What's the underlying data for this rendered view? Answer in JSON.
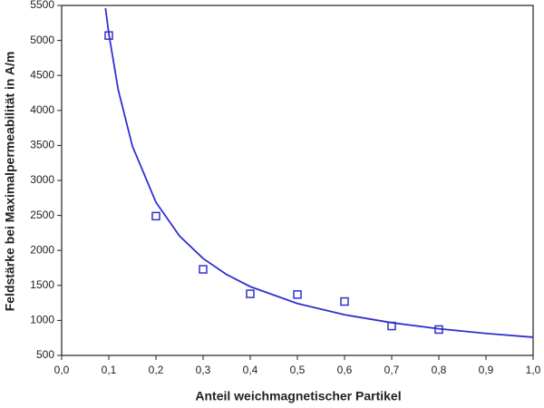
{
  "chart_data": {
    "type": "scatter",
    "x_label": "Anteil weichmagnetischer Partikel",
    "y_label": "Feldstärke bei Maximalpermeabilität in A/m",
    "xlim": [
      0.0,
      1.0
    ],
    "ylim": [
      500,
      5500
    ],
    "xticks": [
      {
        "value": 0.0,
        "label": "0,0"
      },
      {
        "value": 0.1,
        "label": "0,1"
      },
      {
        "value": 0.2,
        "label": "0,2"
      },
      {
        "value": 0.3,
        "label": "0,3"
      },
      {
        "value": 0.4,
        "label": "0,4"
      },
      {
        "value": 0.5,
        "label": "0,5"
      },
      {
        "value": 0.6,
        "label": "0,6"
      },
      {
        "value": 0.7,
        "label": "0,7"
      },
      {
        "value": 0.8,
        "label": "0,8"
      },
      {
        "value": 0.9,
        "label": "0,9"
      },
      {
        "value": 1.0,
        "label": "1,0"
      }
    ],
    "yticks": [
      500,
      1000,
      1500,
      2000,
      2500,
      3000,
      3500,
      4000,
      4500,
      5000,
      5500
    ],
    "series": [
      {
        "style": "markers",
        "color": "#3030d0",
        "x": [
          0.1,
          0.2,
          0.3,
          0.4,
          0.5,
          0.6,
          0.7,
          0.8
        ],
        "values": [
          5070,
          2490,
          1730,
          1380,
          1370,
          1270,
          920,
          870
        ]
      },
      {
        "style": "line",
        "color": "#3030d0",
        "x": [
          0.093,
          0.1,
          0.12,
          0.15,
          0.2,
          0.25,
          0.3,
          0.35,
          0.4,
          0.5,
          0.6,
          0.7,
          0.8,
          0.9,
          1.0
        ],
        "values": [
          5461,
          5098,
          4295,
          3491,
          2688,
          2206,
          1885,
          1655,
          1483,
          1242,
          1081,
          967,
          881,
          814,
          760
        ]
      }
    ]
  }
}
